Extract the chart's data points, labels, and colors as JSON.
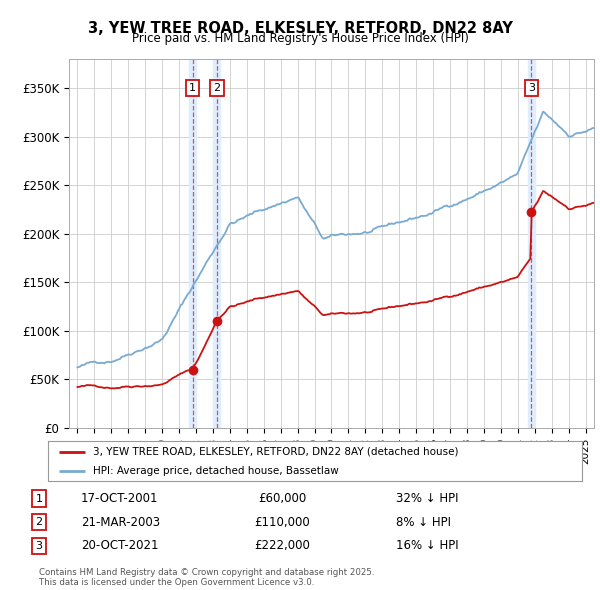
{
  "title_line1": "3, YEW TREE ROAD, ELKESLEY, RETFORD, DN22 8AY",
  "title_line2": "Price paid vs. HM Land Registry's House Price Index (HPI)",
  "background_color": "#ffffff",
  "grid_color": "#cccccc",
  "hpi_color": "#7aaad0",
  "sale_color": "#cc1111",
  "vline_color": "#dd3333",
  "shade_color": "#ddeeff",
  "purchases": [
    {
      "label": "1",
      "date_num": 2001.8,
      "price": 60000,
      "text": "17-OCT-2001",
      "amount": "£60,000",
      "pct": "32% ↓ HPI"
    },
    {
      "label": "2",
      "date_num": 2003.23,
      "price": 110000,
      "text": "21-MAR-2003",
      "amount": "£110,000",
      "pct": "8% ↓ HPI"
    },
    {
      "label": "3",
      "date_num": 2021.8,
      "price": 222000,
      "text": "20-OCT-2021",
      "amount": "£222,000",
      "pct": "16% ↓ HPI"
    }
  ],
  "ylim": [
    0,
    380000
  ],
  "xlim": [
    1994.5,
    2025.5
  ],
  "yticks": [
    0,
    50000,
    100000,
    150000,
    200000,
    250000,
    300000,
    350000
  ],
  "ytick_labels": [
    "£0",
    "£50K",
    "£100K",
    "£150K",
    "£200K",
    "£250K",
    "£300K",
    "£350K"
  ],
  "legend_line1": "3, YEW TREE ROAD, ELKESLEY, RETFORD, DN22 8AY (detached house)",
  "legend_line2": "HPI: Average price, detached house, Bassetlaw",
  "footer": "Contains HM Land Registry data © Crown copyright and database right 2025.\nThis data is licensed under the Open Government Licence v3.0."
}
